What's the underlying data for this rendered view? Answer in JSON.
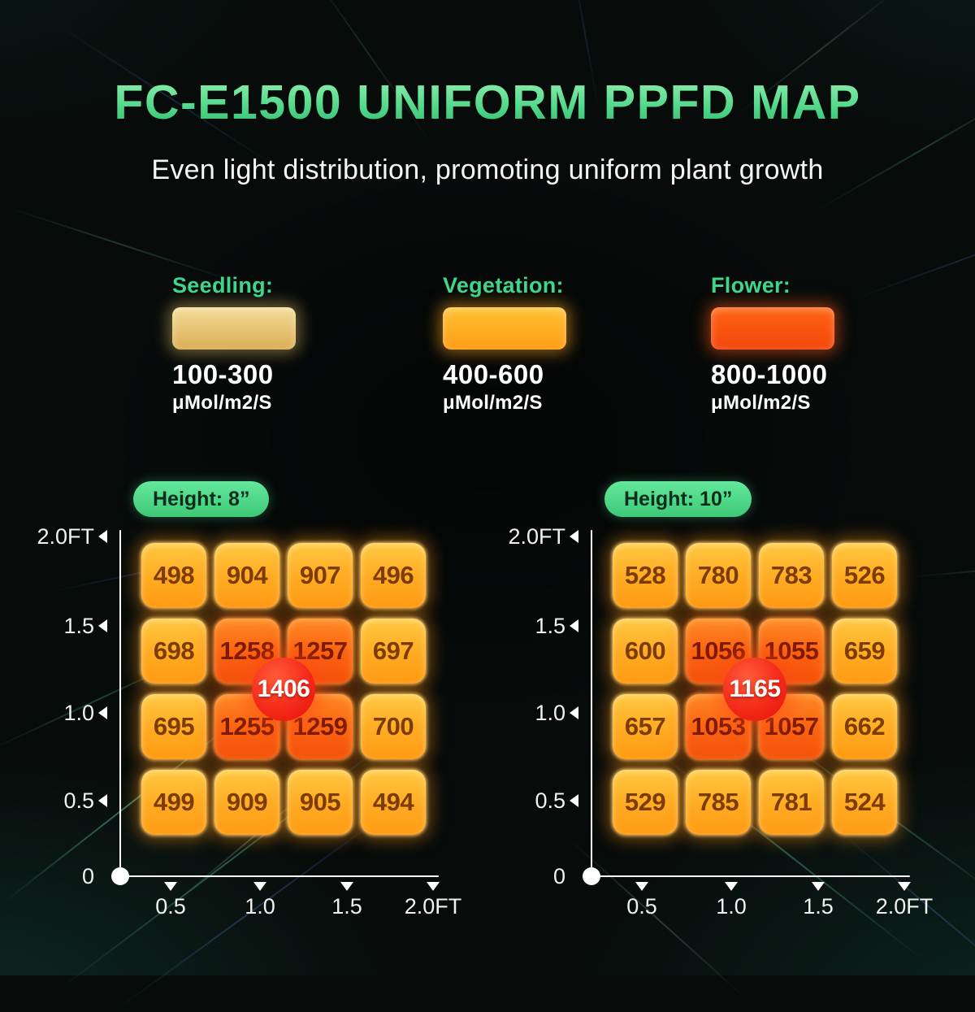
{
  "header": {
    "title": "FC-E1500 UNIFORM PPFD MAP",
    "subtitle": "Even light distribution, promoting uniform plant growth"
  },
  "legend": {
    "items": [
      {
        "label": "Seedling:",
        "range": "100-300",
        "unit": "μMol/m2/S",
        "swatch_top": "#f2dc96",
        "swatch_bottom": "#dcae56",
        "glow": "rgba(235,200,110,0.45)"
      },
      {
        "label": "Vegetation:",
        "range": "400-600",
        "unit": "μMol/m2/S",
        "swatch_top": "#ffc033",
        "swatch_bottom": "#ff9d14",
        "glow": "rgba(255,170,30,0.5)"
      },
      {
        "label": "Flower:",
        "range": "800-1000",
        "unit": "μMol/m2/S",
        "swatch_top": "#ff6314",
        "swatch_bottom": "#f2480c",
        "glow": "rgba(255,90,20,0.5)"
      }
    ]
  },
  "colors": {
    "accent_green": "#3fd68c",
    "title_gradient_top": "#96f1b3",
    "title_gradient_bottom": "#2fbd6d",
    "cell_warm": "#ffab22",
    "cell_hot": "#fa6212",
    "peak_red": "#f42a1a"
  },
  "heat_rule": {
    "hot_min": 1000
  },
  "chart_data": [
    {
      "type": "heatmap",
      "title": "Height: 8”",
      "unit": "μMol/m2/S",
      "x": [
        0.5,
        1.0,
        1.5,
        2.0
      ],
      "y": [
        2.0,
        1.5,
        1.0,
        0.5
      ],
      "x_ticks": [
        "0.5",
        "1.0",
        "1.5",
        "2.0FT"
      ],
      "y_ticks": [
        "2.0FT",
        "1.5",
        "1.0",
        "0.5",
        "0"
      ],
      "values": [
        [
          498,
          904,
          907,
          496
        ],
        [
          698,
          1258,
          1257,
          697
        ],
        [
          695,
          1255,
          1259,
          700
        ],
        [
          499,
          909,
          905,
          494
        ]
      ],
      "center_peak": "1406"
    },
    {
      "type": "heatmap",
      "title": "Height: 10”",
      "unit": "μMol/m2/S",
      "x": [
        0.5,
        1.0,
        1.5,
        2.0
      ],
      "y": [
        2.0,
        1.5,
        1.0,
        0.5
      ],
      "x_ticks": [
        "0.5",
        "1.0",
        "1.5",
        "2.0FT"
      ],
      "y_ticks": [
        "2.0FT",
        "1.5",
        "1.0",
        "0.5",
        "0"
      ],
      "values": [
        [
          528,
          780,
          783,
          526
        ],
        [
          600,
          1056,
          1055,
          659
        ],
        [
          657,
          1053,
          1057,
          662
        ],
        [
          529,
          785,
          781,
          524
        ]
      ],
      "center_peak": "1165"
    }
  ]
}
